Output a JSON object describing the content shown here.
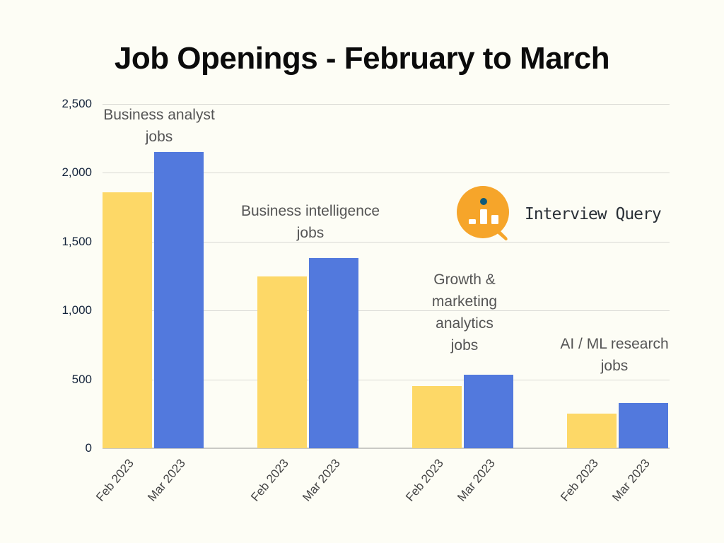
{
  "title": "Job Openings - February to March",
  "logo": {
    "name": "Interview Query",
    "icon": "magnifier-bar-chart-icon",
    "color": "#f6a52a",
    "dot_color": "#0e5a7a"
  },
  "colors": {
    "feb": "#fdd867",
    "mar": "#5279dd",
    "background": "#fdfdf5"
  },
  "chart_data": {
    "type": "bar",
    "title": "Job Openings - February to March",
    "xlabel": "",
    "ylabel": "",
    "ylim": [
      0,
      2500
    ],
    "yticks": [
      "0",
      "500",
      "1,000",
      "1,500",
      "2,000",
      "2,500"
    ],
    "grid": true,
    "legend": "none",
    "categories": [
      "Business analyst jobs",
      "Business intelligence jobs",
      "Growth & marketing analytics jobs",
      "AI / ML research jobs"
    ],
    "x_tick_labels": [
      "Feb 2023",
      "Mar 2023"
    ],
    "series": [
      {
        "name": "Feb 2023",
        "color": "#fdd867",
        "values": [
          1860,
          1250,
          450,
          250
        ]
      },
      {
        "name": "Mar 2023",
        "color": "#5279dd",
        "values": [
          2150,
          1380,
          535,
          330
        ]
      }
    ]
  },
  "group_labels": [
    [
      "Business analyst",
      "jobs"
    ],
    [
      "Business intelligence",
      "jobs"
    ],
    [
      "Growth &",
      "marketing",
      "analytics",
      "jobs"
    ],
    [
      "AI / ML research",
      "jobs"
    ]
  ]
}
